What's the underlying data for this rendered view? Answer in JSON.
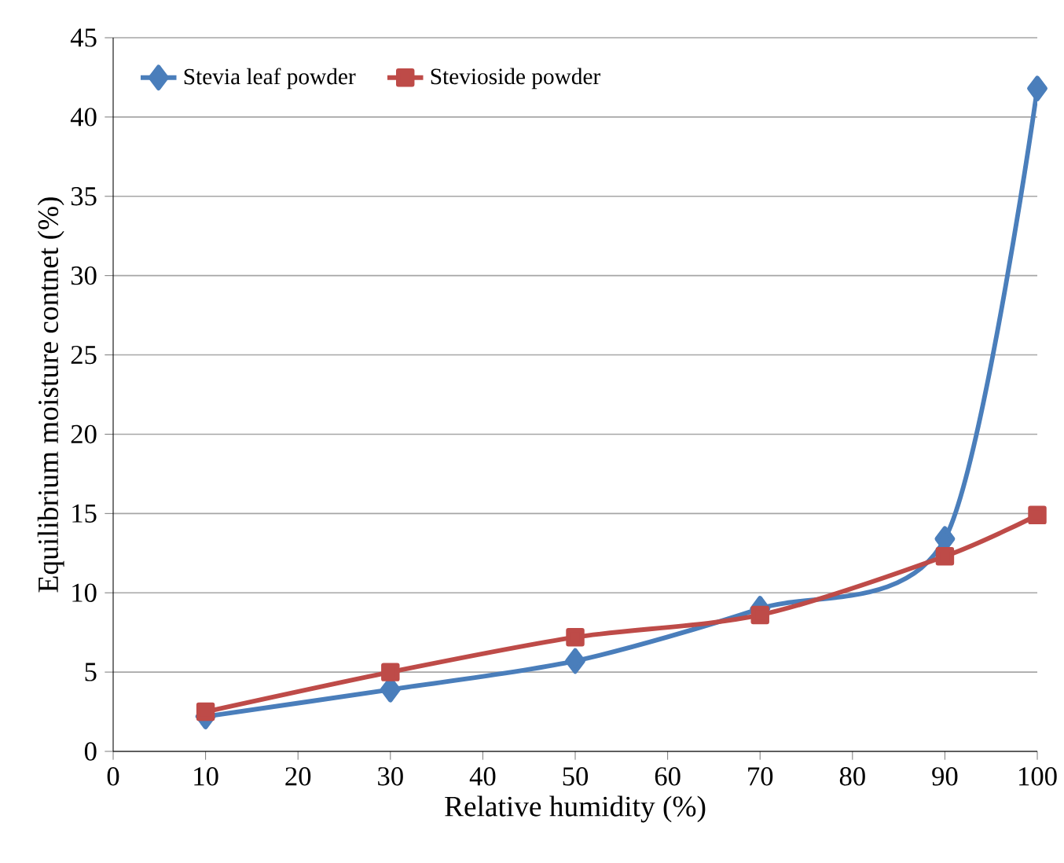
{
  "chart_data": {
    "type": "line",
    "xlabel": "Relative humidity (%)",
    "ylabel": "Equilibrium moisture contnet (%)",
    "x": [
      10,
      30,
      50,
      70,
      90,
      100
    ],
    "series": [
      {
        "name": "Stevia leaf powder",
        "color": "#4a7ebb",
        "marker": "diamond",
        "values": [
          2.2,
          3.9,
          5.7,
          9.0,
          13.4,
          41.8
        ]
      },
      {
        "name": "Stevioside powder",
        "color": "#be4b48",
        "marker": "square",
        "values": [
          2.5,
          5.0,
          7.2,
          8.6,
          12.3,
          14.9
        ]
      }
    ],
    "xlim": [
      0,
      100
    ],
    "ylim": [
      0,
      45
    ],
    "xticks": [
      0,
      10,
      20,
      30,
      40,
      50,
      60,
      70,
      80,
      90,
      100
    ],
    "yticks": [
      0,
      5,
      10,
      15,
      20,
      25,
      30,
      35,
      40,
      45
    ],
    "grid": "y",
    "legend": "top left",
    "line_style": "solid"
  }
}
